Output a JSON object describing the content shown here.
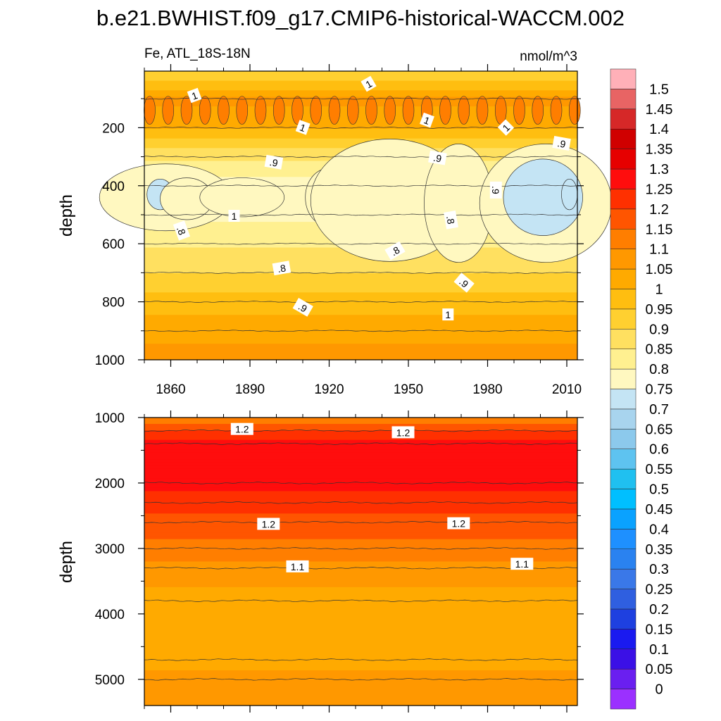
{
  "chart_data": {
    "type": "heatmap",
    "title": "b.e21.BWHIST.f09_g17.CMIP6-historical-WACCM.002",
    "variable_label": "Fe, ATL_18S-18N",
    "units": "nmol/m^3",
    "x_range": [
      1850,
      2014
    ],
    "x_ticks": [
      1860,
      1890,
      1920,
      1950,
      1980,
      2010
    ],
    "colorbar": {
      "levels": [
        0,
        0.05,
        0.1,
        0.15,
        0.2,
        0.25,
        0.3,
        0.35,
        0.4,
        0.45,
        0.5,
        0.55,
        0.6,
        0.65,
        0.7,
        0.75,
        0.8,
        0.85,
        0.9,
        0.95,
        1,
        1.05,
        1.1,
        1.15,
        1.2,
        1.25,
        1.3,
        1.35,
        1.4,
        1.45,
        1.5
      ],
      "labels": [
        "0",
        "0.05",
        "0.1",
        "0.15",
        "0.2",
        "0.25",
        "0.3",
        "0.35",
        "0.4",
        "0.45",
        "0.5",
        "0.55",
        "0.6",
        "0.65",
        "0.7",
        "0.75",
        "0.8",
        "0.85",
        "0.9",
        "0.95",
        "1",
        "1.05",
        "1.1",
        "1.15",
        "1.2",
        "1.25",
        "1.3",
        "1.35",
        "1.4",
        "1.45",
        "1.5"
      ],
      "colors": [
        "#9b30ff",
        "#6a1ff0",
        "#3b10e6",
        "#1a1af0",
        "#1e40e0",
        "#2f5fe0",
        "#3a78e8",
        "#2a82f0",
        "#1e90ff",
        "#0aa2ff",
        "#00bfff",
        "#20c0f0",
        "#5ec3f0",
        "#8cc9ec",
        "#a8d4ee",
        "#c4e4f4",
        "#fff8c0",
        "#fff090",
        "#ffe060",
        "#ffd030",
        "#ffbe10",
        "#ffaa00",
        "#ff9800",
        "#ff7e00",
        "#ff5500",
        "#ff3000",
        "#ff0d0d",
        "#e60000",
        "#d00000",
        "#d62828",
        "#e86464",
        "#ffb0b8"
      ]
    },
    "panels": [
      {
        "name": "upper",
        "ylabel": "depth",
        "y_range": [
          5,
          1000
        ],
        "y_ticks": [
          200,
          400,
          600,
          800,
          1000
        ],
        "contour_labels": [
          "1",
          "1",
          "1",
          "1",
          "1",
          ".9",
          ".9",
          ".9",
          ".9",
          ".8",
          ".8",
          ".8",
          ".8",
          ".9",
          ".9",
          "1",
          "1"
        ],
        "depth_profile": [
          {
            "depth": 20,
            "value": 0.9
          },
          {
            "depth": 100,
            "value": 1.07
          },
          {
            "depth": 200,
            "value": 1.0
          },
          {
            "depth": 300,
            "value": 0.86
          },
          {
            "depth": 400,
            "value": 0.78
          },
          {
            "depth": 500,
            "value": 0.79
          },
          {
            "depth": 600,
            "value": 0.84
          },
          {
            "depth": 700,
            "value": 0.9
          },
          {
            "depth": 800,
            "value": 0.97
          },
          {
            "depth": 900,
            "value": 1.03
          },
          {
            "depth": 1000,
            "value": 1.07
          }
        ]
      },
      {
        "name": "lower",
        "ylabel": "depth",
        "y_range": [
          1000,
          5400
        ],
        "y_ticks": [
          1000,
          2000,
          3000,
          4000,
          5000
        ],
        "contour_labels": [
          "1.2",
          "1.2",
          "1.2",
          "1.2",
          "1.1",
          "1.1"
        ],
        "depth_profile": [
          {
            "depth": 1000,
            "value": 1.12
          },
          {
            "depth": 1200,
            "value": 1.2
          },
          {
            "depth": 1400,
            "value": 1.27
          },
          {
            "depth": 2000,
            "value": 1.27
          },
          {
            "depth": 2300,
            "value": 1.22
          },
          {
            "depth": 2600,
            "value": 1.18
          },
          {
            "depth": 3000,
            "value": 1.13
          },
          {
            "depth": 3300,
            "value": 1.08
          },
          {
            "depth": 3800,
            "value": 1.03
          },
          {
            "depth": 4700,
            "value": 1.03
          },
          {
            "depth": 5000,
            "value": 1.07
          }
        ]
      }
    ]
  }
}
